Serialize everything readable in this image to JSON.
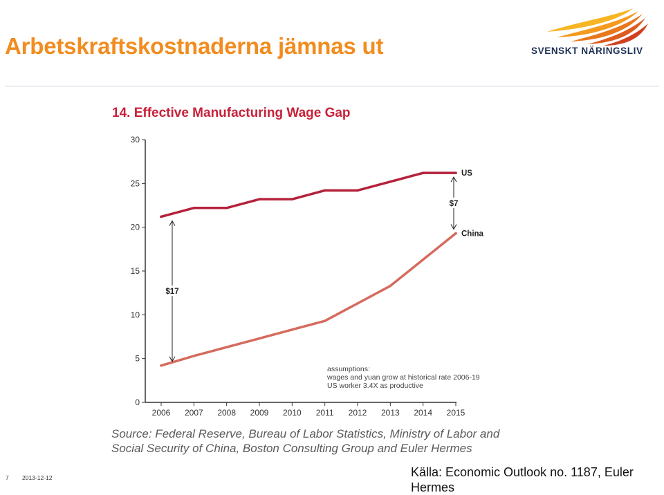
{
  "slide": {
    "title": "Arbetskraftskostnaderna jämnas ut",
    "logo_text": "SVENSKT NÄRINGSLIV",
    "footer_page": "7",
    "footer_date": "2013-12-12",
    "kalla": "Källa: Economic Outlook no. 1187, Euler Hermes"
  },
  "colors": {
    "title": "#f28c1e",
    "logo_text": "#1c2f55",
    "us_line": "#b5213b",
    "china_line": "#d66a5e",
    "axis": "#333333"
  },
  "chart_data": {
    "type": "line",
    "title": "14. Effective Manufacturing Wage Gap",
    "x": [
      "2006",
      "2007",
      "2008",
      "2009",
      "2010",
      "2011",
      "2012",
      "2013",
      "2014",
      "2015"
    ],
    "ylim": [
      0,
      30
    ],
    "yticks": [
      0,
      5,
      10,
      15,
      20,
      25,
      30
    ],
    "xlabel": "",
    "ylabel": "",
    "grid": false,
    "series": [
      {
        "name": "US",
        "values": [
          21.2,
          22.2,
          22.2,
          23.2,
          23.2,
          24.2,
          24.2,
          25.2,
          26.2,
          26.2
        ]
      },
      {
        "name": "China",
        "values": [
          4.2,
          5.3,
          6.3,
          7.3,
          8.3,
          9.3,
          11.3,
          13.3,
          16.3,
          19.3
        ]
      }
    ],
    "annotations": [
      {
        "text": "$17",
        "year": "2006",
        "from": 4.2,
        "to": 21.2
      },
      {
        "text": "$7",
        "year": "2015",
        "from": 19.3,
        "to": 26.2
      }
    ],
    "assumptions": [
      "assumptions:",
      "wages and yuan grow at historical rate 2006-19",
      "US worker 3.4X as productive"
    ],
    "source": "Source: Federal Reserve, Bureau of Labor Statistics, Ministry of Labor and Social Security of China, Boston Consulting Group and Euler Hermes"
  }
}
